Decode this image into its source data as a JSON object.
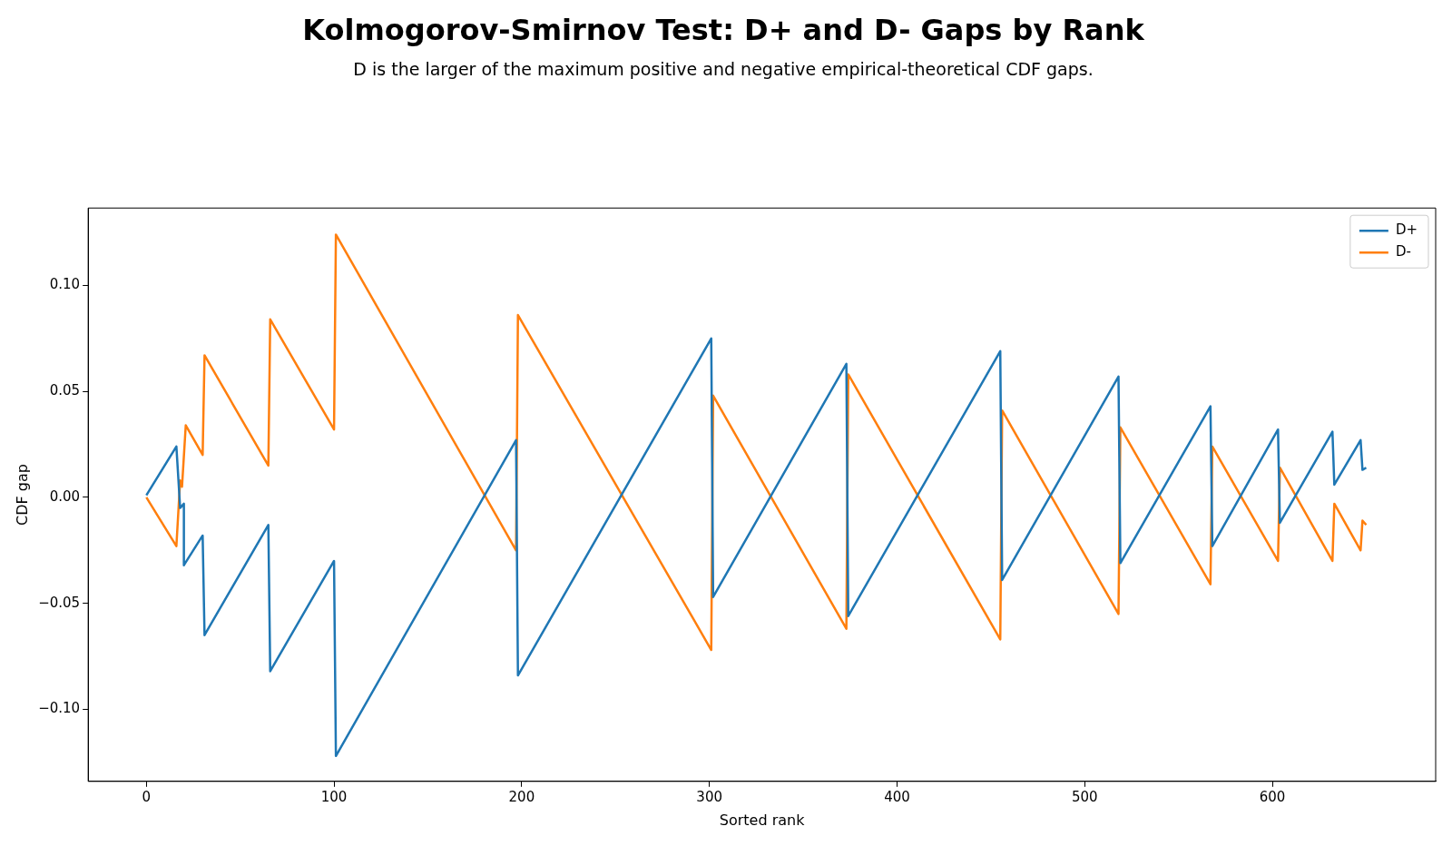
{
  "chart_data": {
    "type": "line",
    "title": "Kolmogorov-Smirnov Test: D+ and D- Gaps by Rank",
    "subtitle": "D is the larger of the maximum positive and negative empirical-theoretical CDF gaps.",
    "xlabel": "Sorted rank",
    "ylabel": "CDF gap",
    "xlim": [
      -31,
      687
    ],
    "ylim": [
      -0.134,
      0.1365
    ],
    "xticks": [
      0,
      100,
      200,
      300,
      400,
      500,
      600
    ],
    "yticks": [
      {
        "value": -0.1,
        "label": "−0.10"
      },
      {
        "value": -0.05,
        "label": "−0.05"
      },
      {
        "value": 0,
        "label": "0.00"
      },
      {
        "value": 0.05,
        "label": "0.05"
      },
      {
        "value": 0.1,
        "label": "0.10"
      }
    ],
    "grid": false,
    "legend": "top right",
    "marker": "none",
    "line_style": "solid",
    "series": [
      {
        "name": "D+",
        "color": "#1f77b4",
        "x": [
          0,
          16,
          18,
          20,
          20,
          30,
          31,
          65,
          66,
          100,
          101,
          197,
          198,
          301,
          302,
          373,
          374,
          455,
          456,
          518,
          519,
          567,
          568,
          603,
          604,
          632,
          633,
          647,
          648,
          650
        ],
        "values": [
          0.001,
          0.024,
          -0.005,
          -0.003,
          -0.032,
          -0.018,
          -0.065,
          -0.013,
          -0.082,
          -0.03,
          -0.122,
          0.027,
          -0.084,
          0.075,
          -0.047,
          0.063,
          -0.056,
          0.069,
          -0.039,
          0.057,
          -0.031,
          0.043,
          -0.023,
          0.032,
          -0.012,
          0.031,
          0.006,
          0.027,
          0.013,
          0.014
        ]
      },
      {
        "name": "D-",
        "color": "#ff7f0e",
        "x": [
          0,
          16,
          18,
          19,
          21,
          30,
          31,
          65,
          66,
          100,
          101,
          197,
          198,
          301,
          302,
          373,
          374,
          455,
          456,
          518,
          519,
          567,
          568,
          603,
          604,
          632,
          633,
          647,
          648,
          650
        ],
        "values": [
          0.0,
          -0.023,
          0.008,
          0.005,
          0.034,
          0.02,
          0.067,
          0.015,
          0.084,
          0.032,
          0.124,
          -0.025,
          0.086,
          -0.072,
          0.048,
          -0.062,
          0.058,
          -0.067,
          0.041,
          -0.055,
          0.033,
          -0.041,
          0.024,
          -0.03,
          0.014,
          -0.03,
          -0.003,
          -0.025,
          -0.011,
          -0.013
        ]
      }
    ]
  }
}
